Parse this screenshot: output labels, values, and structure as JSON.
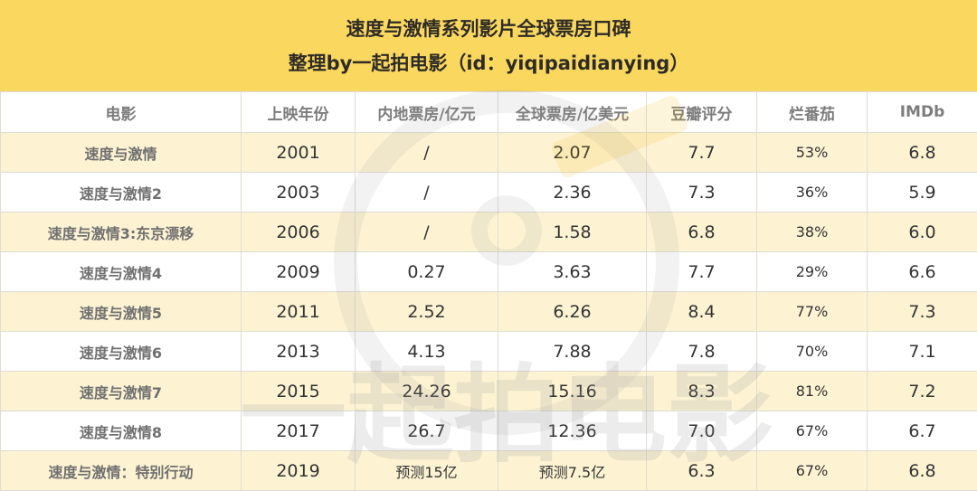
{
  "title": {
    "line1": "速度与激情系列影片全球票房口碑",
    "line2": "整理by一起拍电影（id：yiqipaidianying）"
  },
  "table": {
    "headers": [
      "电影",
      "上映年份",
      "内地票房/亿元",
      "全球票房/亿美元",
      "豆瓣评分",
      "烂番茄",
      "IMDb"
    ],
    "rows": [
      [
        "速度与激情",
        "2001",
        "/",
        "2.07",
        "7.7",
        "53%",
        "6.8"
      ],
      [
        "速度与激情2",
        "2003",
        "/",
        "2.36",
        "7.3",
        "36%",
        "5.9"
      ],
      [
        "速度与激情3:东京漂移",
        "2006",
        "/",
        "1.58",
        "6.8",
        "38%",
        "6.0"
      ],
      [
        "速度与激情4",
        "2009",
        "0.27",
        "3.63",
        "7.7",
        "29%",
        "6.6"
      ],
      [
        "速度与激情5",
        "2011",
        "2.52",
        "6.26",
        "8.4",
        "77%",
        "7.3"
      ],
      [
        "速度与激情6",
        "2013",
        "4.13",
        "7.88",
        "7.8",
        "70%",
        "7.1"
      ],
      [
        "速度与激情7",
        "2015",
        "24.26",
        "15.16",
        "8.3",
        "81%",
        "7.2"
      ],
      [
        "速度与激情8",
        "2017",
        "26.7",
        "12.36",
        "7.0",
        "67%",
        "6.7"
      ],
      [
        "速度与激情：特别行动",
        "2019",
        "预测15亿",
        "预测7.5亿",
        "6.3",
        "67%",
        "6.8"
      ]
    ]
  },
  "watermark": {
    "text": "一起拍电影"
  },
  "colors": {
    "header_bg": "#fad85f",
    "odd_row": "#fdf3d3",
    "even_row": "#ffffff",
    "border": "#dedbd2"
  }
}
